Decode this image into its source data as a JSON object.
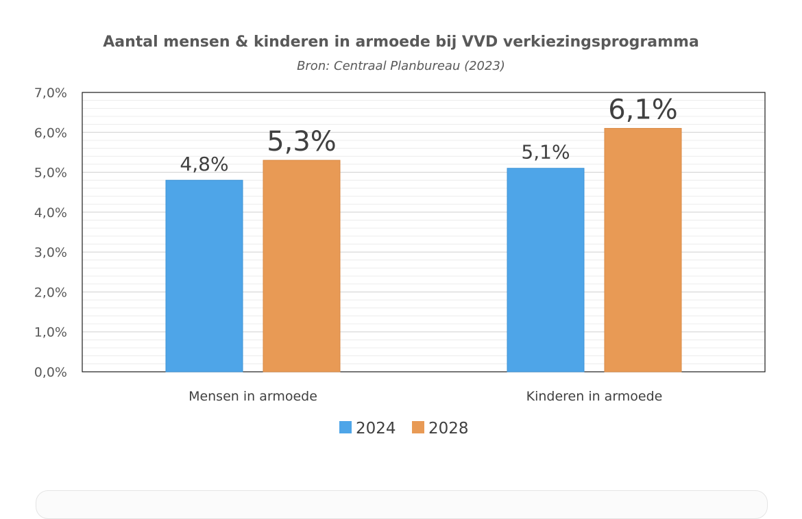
{
  "chart_data": {
    "type": "bar",
    "title": "Aantal mensen & kinderen in armoede bij VVD verkiezingsprogramma",
    "subtitle": "Bron: Centraal Planbureau (2023)",
    "categories": [
      "Mensen in armoede",
      "Kinderen in armoede"
    ],
    "series": [
      {
        "name": "2024",
        "color": "#4ea5e8",
        "values": [
          4.8,
          5.1
        ],
        "labels": [
          "4,8%",
          "5,1%"
        ]
      },
      {
        "name": "2028",
        "color": "#e89a55",
        "values": [
          5.3,
          6.1
        ],
        "labels": [
          "5,3%",
          "6,1%"
        ]
      }
    ],
    "ylim": [
      0,
      7
    ],
    "ytick_values": [
      0,
      1,
      2,
      3,
      4,
      5,
      6,
      7
    ],
    "ytick_labels": [
      "0,0%",
      "1,0%",
      "2,0%",
      "3,0%",
      "4,0%",
      "5,0%",
      "6,0%",
      "7,0%"
    ],
    "grid": true,
    "legend_position": "bottom"
  }
}
